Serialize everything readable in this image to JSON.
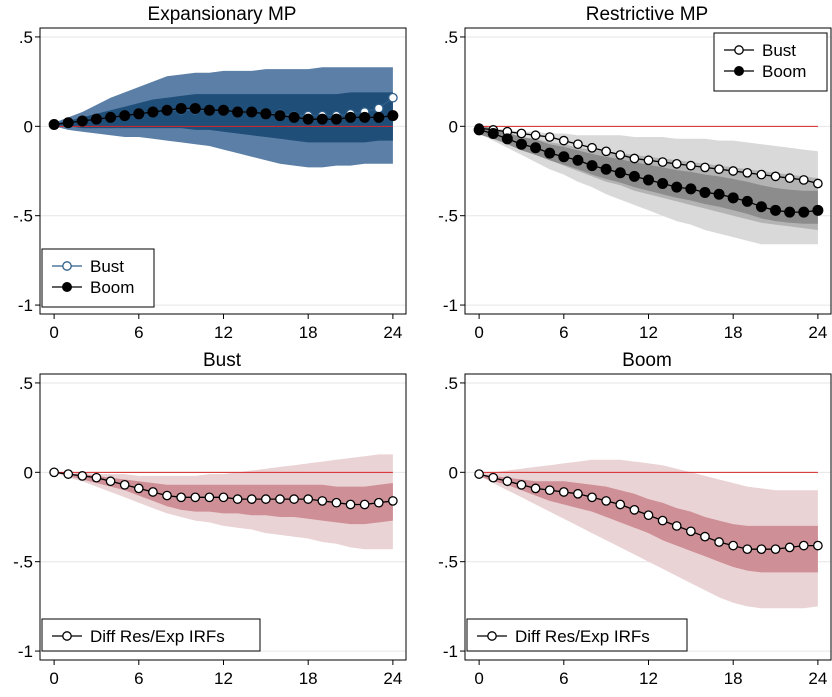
{
  "colors": {
    "blue_outer": "#5b7fa6",
    "blue_inner": "#1f4e79",
    "gray_outer": "#d9d9d9",
    "gray_inner": "#b3b3b3",
    "gray_core": "#8c8c8c",
    "red_outer": "#ead3d5",
    "red_inner": "#cf8f96",
    "zero_line": "#d62728",
    "bust_marker": "#2e5f8a"
  },
  "chart_data": [
    {
      "type": "line",
      "title": "Expansionary MP",
      "x": [
        0,
        1,
        2,
        3,
        4,
        5,
        6,
        7,
        8,
        9,
        10,
        11,
        12,
        13,
        14,
        15,
        16,
        17,
        18,
        19,
        20,
        21,
        22,
        23,
        24
      ],
      "xticks": [
        "0",
        "6",
        "12",
        "18",
        "24"
      ],
      "yticks": [
        ".5",
        "0",
        "-.5",
        "-1"
      ],
      "ylim": [
        -1.05,
        0.55
      ],
      "xlim": [
        -1,
        25
      ],
      "legend_position": "bottom-left",
      "series": [
        {
          "name": "Bust",
          "marker": "hollow",
          "values": [
            0.01,
            0.02,
            0.03,
            0.04,
            0.05,
            0.06,
            0.07,
            0.08,
            0.09,
            0.09,
            0.09,
            0.09,
            0.09,
            0.08,
            0.08,
            0.07,
            0.07,
            0.06,
            0.06,
            0.06,
            0.06,
            0.07,
            0.08,
            0.1,
            0.16
          ]
        },
        {
          "name": "Boom",
          "marker": "filled",
          "values": [
            0.01,
            0.02,
            0.03,
            0.04,
            0.05,
            0.06,
            0.07,
            0.08,
            0.09,
            0.1,
            0.1,
            0.09,
            0.09,
            0.08,
            0.08,
            0.07,
            0.06,
            0.05,
            0.04,
            0.04,
            0.04,
            0.05,
            0.05,
            0.05,
            0.06
          ]
        }
      ],
      "bands": {
        "outer_upper": [
          0.02,
          0.05,
          0.08,
          0.12,
          0.16,
          0.19,
          0.22,
          0.25,
          0.28,
          0.29,
          0.3,
          0.3,
          0.31,
          0.31,
          0.31,
          0.32,
          0.32,
          0.32,
          0.32,
          0.33,
          0.33,
          0.33,
          0.33,
          0.33,
          0.33
        ],
        "inner_upper": [
          0.015,
          0.03,
          0.05,
          0.07,
          0.09,
          0.11,
          0.13,
          0.15,
          0.16,
          0.17,
          0.18,
          0.18,
          0.18,
          0.18,
          0.18,
          0.18,
          0.18,
          0.18,
          0.18,
          0.18,
          0.18,
          0.19,
          0.19,
          0.19,
          0.19
        ],
        "inner_lower": [
          0.005,
          0.0,
          -0.01,
          -0.01,
          -0.01,
          -0.01,
          -0.01,
          -0.01,
          -0.01,
          -0.01,
          -0.02,
          -0.02,
          -0.03,
          -0.04,
          -0.05,
          -0.06,
          -0.07,
          -0.08,
          -0.09,
          -0.09,
          -0.09,
          -0.09,
          -0.09,
          -0.08,
          -0.08
        ],
        "outer_lower": [
          0.0,
          -0.02,
          -0.03,
          -0.04,
          -0.05,
          -0.06,
          -0.06,
          -0.07,
          -0.08,
          -0.09,
          -0.1,
          -0.11,
          -0.13,
          -0.15,
          -0.17,
          -0.19,
          -0.21,
          -0.22,
          -0.23,
          -0.23,
          -0.22,
          -0.22,
          -0.21,
          -0.21,
          -0.21
        ]
      }
    },
    {
      "type": "line",
      "title": "Restrictive MP",
      "x": [
        0,
        1,
        2,
        3,
        4,
        5,
        6,
        7,
        8,
        9,
        10,
        11,
        12,
        13,
        14,
        15,
        16,
        17,
        18,
        19,
        20,
        21,
        22,
        23,
        24
      ],
      "xticks": [
        "0",
        "6",
        "12",
        "18",
        "24"
      ],
      "yticks": [
        ".5",
        "0",
        "-.5",
        "-1"
      ],
      "ylim": [
        -1.05,
        0.55
      ],
      "xlim": [
        -1,
        25
      ],
      "legend_position": "top-right",
      "series": [
        {
          "name": "Bust",
          "marker": "hollow",
          "values": [
            -0.01,
            -0.02,
            -0.03,
            -0.04,
            -0.05,
            -0.06,
            -0.08,
            -0.1,
            -0.12,
            -0.14,
            -0.16,
            -0.18,
            -0.19,
            -0.2,
            -0.21,
            -0.22,
            -0.23,
            -0.24,
            -0.25,
            -0.26,
            -0.27,
            -0.28,
            -0.29,
            -0.3,
            -0.32
          ]
        },
        {
          "name": "Boom",
          "marker": "filled",
          "values": [
            -0.02,
            -0.04,
            -0.07,
            -0.1,
            -0.12,
            -0.15,
            -0.17,
            -0.19,
            -0.22,
            -0.24,
            -0.26,
            -0.28,
            -0.3,
            -0.32,
            -0.34,
            -0.35,
            -0.37,
            -0.38,
            -0.4,
            -0.42,
            -0.45,
            -0.47,
            -0.48,
            -0.48,
            -0.47
          ]
        }
      ],
      "bands": {
        "outer_upper": [
          -0.01,
          -0.01,
          -0.02,
          -0.03,
          -0.03,
          -0.04,
          -0.04,
          -0.05,
          -0.05,
          -0.05,
          -0.05,
          -0.06,
          -0.06,
          -0.06,
          -0.07,
          -0.07,
          -0.07,
          -0.08,
          -0.08,
          -0.09,
          -0.1,
          -0.11,
          -0.12,
          -0.13,
          -0.14
        ],
        "inner_upper": [
          -0.015,
          -0.02,
          -0.04,
          -0.06,
          -0.07,
          -0.09,
          -0.1,
          -0.12,
          -0.13,
          -0.14,
          -0.15,
          -0.16,
          -0.17,
          -0.18,
          -0.19,
          -0.2,
          -0.21,
          -0.22,
          -0.23,
          -0.24,
          -0.25,
          -0.26,
          -0.27,
          -0.28,
          -0.29
        ],
        "inner_lower": [
          -0.03,
          -0.06,
          -0.09,
          -0.13,
          -0.16,
          -0.19,
          -0.22,
          -0.25,
          -0.28,
          -0.31,
          -0.33,
          -0.36,
          -0.38,
          -0.4,
          -0.42,
          -0.44,
          -0.46,
          -0.48,
          -0.5,
          -0.52,
          -0.54,
          -0.55,
          -0.56,
          -0.57,
          -0.58
        ],
        "outer_lower": [
          -0.04,
          -0.08,
          -0.12,
          -0.16,
          -0.2,
          -0.24,
          -0.27,
          -0.31,
          -0.34,
          -0.38,
          -0.41,
          -0.44,
          -0.47,
          -0.5,
          -0.53,
          -0.55,
          -0.58,
          -0.6,
          -0.62,
          -0.64,
          -0.66,
          -0.66,
          -0.66,
          -0.66,
          -0.66
        ]
      }
    },
    {
      "type": "line",
      "title": "Bust",
      "x": [
        0,
        1,
        2,
        3,
        4,
        5,
        6,
        7,
        8,
        9,
        10,
        11,
        12,
        13,
        14,
        15,
        16,
        17,
        18,
        19,
        20,
        21,
        22,
        23,
        24
      ],
      "xticks": [
        "0",
        "6",
        "12",
        "18",
        "24"
      ],
      "yticks": [
        ".5",
        "0",
        "-.5",
        "-1"
      ],
      "ylim": [
        -1.05,
        0.55
      ],
      "xlim": [
        -1,
        25
      ],
      "legend_position": "bottom-left",
      "series": [
        {
          "name": "Diff Res/Exp IRFs",
          "marker": "hollow",
          "values": [
            0.0,
            -0.01,
            -0.02,
            -0.03,
            -0.05,
            -0.07,
            -0.09,
            -0.11,
            -0.13,
            -0.14,
            -0.14,
            -0.14,
            -0.14,
            -0.15,
            -0.15,
            -0.15,
            -0.15,
            -0.15,
            -0.15,
            -0.16,
            -0.17,
            -0.18,
            -0.18,
            -0.17,
            -0.16
          ]
        }
      ],
      "bands": {
        "outer_upper": [
          0.0,
          0.0,
          0.0,
          -0.01,
          -0.01,
          -0.01,
          -0.02,
          -0.02,
          -0.02,
          -0.02,
          -0.02,
          -0.01,
          -0.01,
          0.0,
          0.01,
          0.02,
          0.03,
          0.04,
          0.05,
          0.06,
          0.07,
          0.08,
          0.09,
          0.1,
          0.1
        ],
        "inner_upper": [
          0.0,
          -0.01,
          -0.01,
          -0.02,
          -0.03,
          -0.04,
          -0.05,
          -0.06,
          -0.07,
          -0.07,
          -0.07,
          -0.07,
          -0.07,
          -0.07,
          -0.07,
          -0.07,
          -0.07,
          -0.07,
          -0.07,
          -0.07,
          -0.08,
          -0.08,
          -0.08,
          -0.07,
          -0.06
        ],
        "inner_lower": [
          0.0,
          -0.02,
          -0.04,
          -0.06,
          -0.08,
          -0.1,
          -0.13,
          -0.16,
          -0.19,
          -0.21,
          -0.22,
          -0.22,
          -0.23,
          -0.23,
          -0.24,
          -0.24,
          -0.25,
          -0.25,
          -0.26,
          -0.27,
          -0.28,
          -0.29,
          -0.29,
          -0.28,
          -0.27
        ],
        "outer_lower": [
          0.0,
          -0.03,
          -0.05,
          -0.08,
          -0.11,
          -0.14,
          -0.17,
          -0.2,
          -0.23,
          -0.25,
          -0.27,
          -0.28,
          -0.3,
          -0.31,
          -0.32,
          -0.34,
          -0.35,
          -0.36,
          -0.37,
          -0.39,
          -0.4,
          -0.42,
          -0.43,
          -0.43,
          -0.43
        ]
      }
    },
    {
      "type": "line",
      "title": "Boom",
      "x": [
        0,
        1,
        2,
        3,
        4,
        5,
        6,
        7,
        8,
        9,
        10,
        11,
        12,
        13,
        14,
        15,
        16,
        17,
        18,
        19,
        20,
        21,
        22,
        23,
        24
      ],
      "xticks": [
        "0",
        "6",
        "12",
        "18",
        "24"
      ],
      "yticks": [
        ".5",
        "0",
        "-.5",
        "-1"
      ],
      "ylim": [
        -1.05,
        0.55
      ],
      "xlim": [
        -1,
        25
      ],
      "legend_position": "bottom-left",
      "series": [
        {
          "name": "Diff Res/Exp IRFs",
          "marker": "hollow",
          "values": [
            -0.01,
            -0.03,
            -0.05,
            -0.07,
            -0.09,
            -0.1,
            -0.11,
            -0.12,
            -0.14,
            -0.16,
            -0.18,
            -0.21,
            -0.24,
            -0.27,
            -0.3,
            -0.33,
            -0.36,
            -0.39,
            -0.41,
            -0.43,
            -0.43,
            -0.43,
            -0.42,
            -0.41,
            -0.41
          ]
        }
      ],
      "bands": {
        "outer_upper": [
          0.0,
          0.0,
          0.01,
          0.02,
          0.03,
          0.04,
          0.05,
          0.06,
          0.07,
          0.07,
          0.07,
          0.06,
          0.05,
          0.04,
          0.02,
          0.0,
          -0.02,
          -0.04,
          -0.06,
          -0.08,
          -0.09,
          -0.1,
          -0.1,
          -0.1,
          -0.1
        ],
        "inner_upper": [
          -0.01,
          -0.02,
          -0.03,
          -0.04,
          -0.05,
          -0.05,
          -0.05,
          -0.06,
          -0.07,
          -0.08,
          -0.1,
          -0.12,
          -0.15,
          -0.17,
          -0.2,
          -0.22,
          -0.25,
          -0.27,
          -0.29,
          -0.3,
          -0.3,
          -0.3,
          -0.3,
          -0.3,
          -0.3
        ],
        "inner_lower": [
          -0.02,
          -0.05,
          -0.07,
          -0.1,
          -0.13,
          -0.16,
          -0.18,
          -0.2,
          -0.22,
          -0.25,
          -0.28,
          -0.31,
          -0.34,
          -0.38,
          -0.41,
          -0.44,
          -0.47,
          -0.5,
          -0.53,
          -0.55,
          -0.56,
          -0.56,
          -0.56,
          -0.56,
          -0.56
        ],
        "outer_lower": [
          -0.02,
          -0.06,
          -0.1,
          -0.14,
          -0.18,
          -0.22,
          -0.26,
          -0.3,
          -0.34,
          -0.38,
          -0.42,
          -0.46,
          -0.5,
          -0.54,
          -0.58,
          -0.62,
          -0.66,
          -0.7,
          -0.73,
          -0.75,
          -0.76,
          -0.76,
          -0.76,
          -0.76,
          -0.75
        ]
      }
    }
  ]
}
